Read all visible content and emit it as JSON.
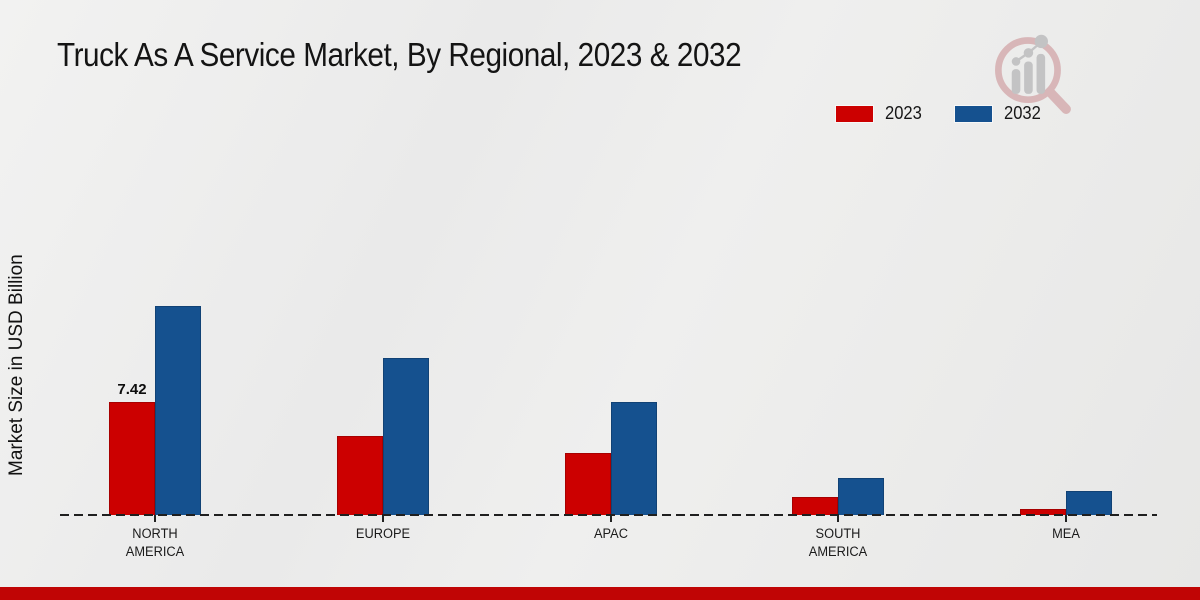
{
  "chart_data": {
    "type": "bar",
    "title": "Truck As A Service Market, By Regional, 2023 & 2032",
    "ylabel": "Market Size in USD Billion",
    "xlabel": "",
    "categories": [
      [
        "NORTH",
        "AMERICA"
      ],
      [
        "EUROPE"
      ],
      [
        "APAC"
      ],
      [
        "SOUTH",
        "AMERICA"
      ],
      [
        "MEA"
      ]
    ],
    "series": [
      {
        "name": "2023",
        "color": "#cc0000",
        "values": [
          7.42,
          5.2,
          4.1,
          1.2,
          0.4
        ],
        "labels": [
          "7.42",
          "",
          "",
          "",
          ""
        ]
      },
      {
        "name": "2032",
        "color": "#15518f",
        "values": [
          13.7,
          10.3,
          7.4,
          2.4,
          1.6
        ],
        "labels": [
          "",
          "",
          "",
          "",
          ""
        ]
      }
    ],
    "grid": false,
    "y_axis_ticks_visible": false,
    "baseline_style": "dashed",
    "legend_position": "top-right"
  },
  "branding": {
    "watermark_icon": "magnifier-bar-chart-logo",
    "accent_bar_color": "#c00505"
  }
}
